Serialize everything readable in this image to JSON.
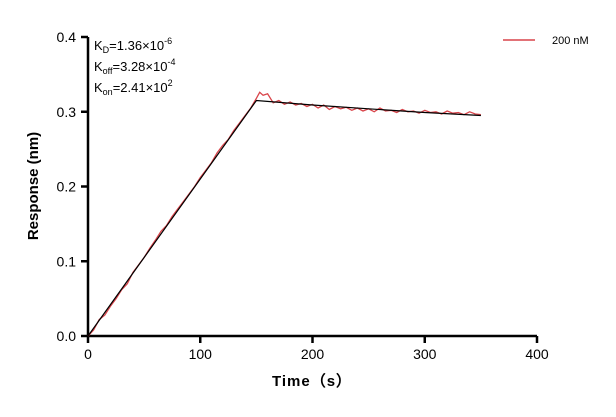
{
  "chart_data": {
    "type": "line",
    "title": "",
    "xlabel": "Time（s）",
    "ylabel": "Response (nm)",
    "xlim": [
      0,
      400
    ],
    "ylim": [
      0,
      0.4
    ],
    "xticks": [
      "0",
      "100",
      "200",
      "300",
      "400"
    ],
    "yticks": [
      "0.0",
      "0.1",
      "0.2",
      "0.3",
      "0.4"
    ],
    "grid": false,
    "legend_placement": "top-right",
    "annotations": {
      "kd": {
        "base": "K",
        "sub": "D",
        "text": "=1.36×10",
        "sup": "-6"
      },
      "koff": {
        "base": "K",
        "sub": "off",
        "text": "=3.28×10",
        "sup": "-4"
      },
      "kon": {
        "base": "K",
        "sub": "on",
        "text": "=2.41×10",
        "sup": "2"
      }
    },
    "series": [
      {
        "name": "200 nM",
        "color": "#d9444a",
        "x": [
          0,
          5,
          10,
          15,
          20,
          25,
          30,
          35,
          40,
          45,
          50,
          55,
          60,
          65,
          70,
          75,
          80,
          85,
          90,
          95,
          100,
          105,
          110,
          115,
          120,
          125,
          130,
          135,
          140,
          145,
          150,
          153,
          156,
          160,
          165,
          170,
          175,
          180,
          185,
          190,
          195,
          200,
          205,
          210,
          215,
          220,
          225,
          230,
          235,
          240,
          245,
          250,
          255,
          260,
          265,
          270,
          275,
          280,
          285,
          290,
          295,
          300,
          305,
          310,
          315,
          320,
          325,
          330,
          335,
          340,
          345,
          350
        ],
        "y": [
          0,
          0.008,
          0.022,
          0.028,
          0.04,
          0.05,
          0.062,
          0.07,
          0.085,
          0.095,
          0.105,
          0.117,
          0.128,
          0.14,
          0.148,
          0.16,
          0.17,
          0.18,
          0.19,
          0.2,
          0.212,
          0.222,
          0.232,
          0.245,
          0.255,
          0.263,
          0.275,
          0.285,
          0.295,
          0.305,
          0.318,
          0.326,
          0.322,
          0.324,
          0.312,
          0.315,
          0.31,
          0.313,
          0.309,
          0.311,
          0.307,
          0.31,
          0.305,
          0.309,
          0.303,
          0.307,
          0.304,
          0.306,
          0.302,
          0.305,
          0.301,
          0.304,
          0.3,
          0.305,
          0.301,
          0.302,
          0.299,
          0.303,
          0.3,
          0.301,
          0.298,
          0.302,
          0.299,
          0.3,
          0.297,
          0.301,
          0.298,
          0.299,
          0.296,
          0.3,
          0.297,
          0.296
        ]
      },
      {
        "name": "",
        "color": "#000000",
        "x": [
          0,
          150,
          200,
          250,
          300,
          350
        ],
        "y": [
          0,
          0.315,
          0.309,
          0.304,
          0.299,
          0.295
        ]
      }
    ]
  }
}
